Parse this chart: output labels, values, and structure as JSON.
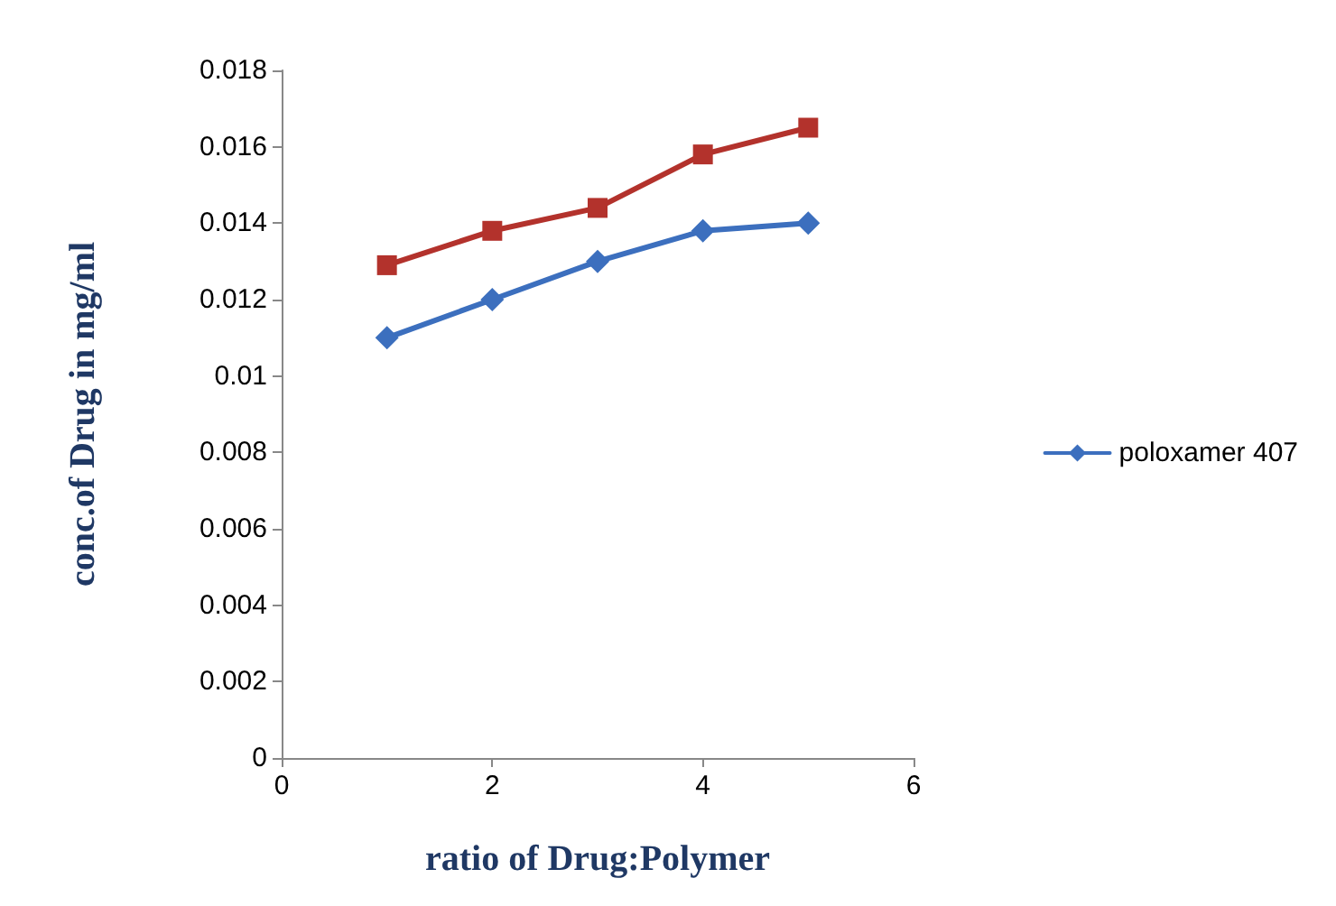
{
  "chart_data": {
    "type": "line",
    "xlabel": "ratio of Drug:Polymer",
    "ylabel": "conc.of Drug in mg/ml",
    "x": [
      1,
      2,
      3,
      4,
      5
    ],
    "series": [
      {
        "name": "poloxamer 407",
        "color": "#3c6fbe",
        "marker": "diamond",
        "values": [
          0.011,
          0.012,
          0.013,
          0.0138,
          0.014
        ]
      },
      {
        "color": "#b3322c",
        "marker": "square",
        "values": [
          0.0129,
          0.0138,
          0.0144,
          0.0158,
          0.0165
        ]
      }
    ],
    "xlim": [
      0,
      6
    ],
    "xticks": [
      0,
      2,
      4,
      6
    ],
    "ylim": [
      0,
      0.018
    ],
    "yticks": [
      0,
      0.002,
      0.004,
      0.006,
      0.008,
      0.01,
      0.012,
      0.014,
      0.016,
      0.018
    ],
    "grid": false,
    "legend": "right",
    "line_style": "solid"
  }
}
